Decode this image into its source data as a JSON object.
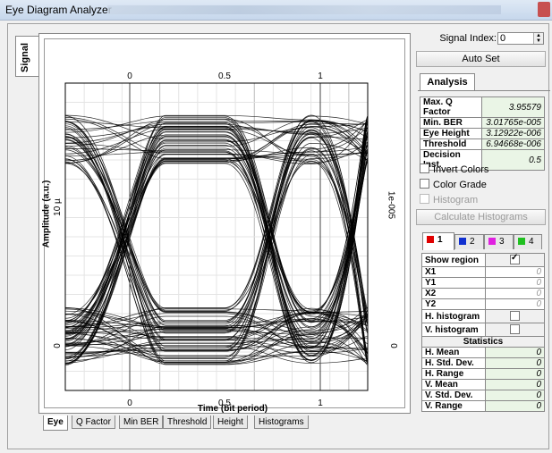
{
  "window": {
    "title": "Eye Diagram Analyzer"
  },
  "side_tab": {
    "label": "Signal"
  },
  "plot": {
    "y_label": "Amplitude (a.u.)",
    "x_label": "Time (bit period)",
    "right_unit": "1e-005",
    "x_ticks_bottom": [
      "0",
      "0.5",
      "1"
    ],
    "x_ticks_top": [
      "0",
      "0.5",
      "1"
    ],
    "y_ticks_left": [
      "10 µ",
      "0"
    ],
    "y_ticks_right": [
      "0"
    ]
  },
  "bottom_tabs": [
    "Eye",
    "Q Factor",
    "Min BER",
    "Threshold",
    "Height",
    "Histograms"
  ],
  "signal_index": {
    "label": "Signal Index:",
    "value": "0"
  },
  "auto_set_label": "Auto Set",
  "analysis": {
    "tab_label": "Analysis",
    "rows": [
      {
        "key": "Max. Q Factor",
        "value": "3.95579"
      },
      {
        "key": "Min. BER",
        "value": "3.01765e-005"
      },
      {
        "key": "Eye Height",
        "value": "3.12922e-006"
      },
      {
        "key": "Threshold",
        "value": "6.94668e-006"
      },
      {
        "key": "Decision Inst.",
        "value": "0.5"
      }
    ]
  },
  "options": {
    "invert_colors": "Invert Colors",
    "color_grade": "Color Grade",
    "histogram": "Histogram",
    "calc_histograms": "Calculate Histograms"
  },
  "cursor_tabs": [
    {
      "label": "1",
      "color": "#e00000"
    },
    {
      "label": "2",
      "color": "#1030d0"
    },
    {
      "label": "3",
      "color": "#e020e0"
    },
    {
      "label": "4",
      "color": "#20c020"
    }
  ],
  "region": {
    "show_region": "Show region",
    "rows": [
      {
        "key": "X1",
        "value": "0"
      },
      {
        "key": "Y1",
        "value": "0"
      },
      {
        "key": "X2",
        "value": "0"
      },
      {
        "key": "Y2",
        "value": "0"
      }
    ],
    "h_histogram": "H. histogram",
    "v_histogram": "V. histogram"
  },
  "statistics": {
    "header": "Statistics",
    "rows": [
      {
        "key": "H. Mean",
        "value": "0"
      },
      {
        "key": "H. Std. Dev.",
        "value": "0"
      },
      {
        "key": "H. Range",
        "value": "0"
      },
      {
        "key": "V. Mean",
        "value": "0"
      },
      {
        "key": "V. Std. Dev.",
        "value": "0"
      },
      {
        "key": "V. Range",
        "value": "0"
      }
    ]
  }
}
